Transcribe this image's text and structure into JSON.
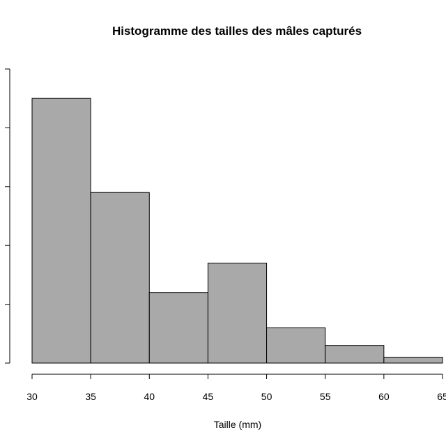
{
  "chart_data": {
    "type": "bar",
    "title": "Histogramme des tailles des mâles capturés",
    "xlabel": "Taille (mm)",
    "ylabel": "",
    "bins": [
      {
        "from": 30,
        "to": 35,
        "value": 45
      },
      {
        "from": 35,
        "to": 40,
        "value": 29
      },
      {
        "from": 40,
        "to": 45,
        "value": 12
      },
      {
        "from": 45,
        "to": 50,
        "value": 17
      },
      {
        "from": 50,
        "to": 55,
        "value": 6
      },
      {
        "from": 55,
        "to": 60,
        "value": 3
      },
      {
        "from": 60,
        "to": 65,
        "value": 1
      }
    ],
    "xlim": [
      30,
      65
    ],
    "ylim": [
      0,
      50
    ],
    "x_ticks": [
      30,
      35,
      40,
      45,
      50,
      55,
      60,
      65
    ],
    "x_tick_labels": [
      "30",
      "35",
      "40",
      "45",
      "50",
      "55",
      "60",
      "65"
    ],
    "y_ticks": [
      0,
      10,
      20,
      30,
      40,
      50
    ],
    "grid": false,
    "bar_color": "#a9a9a9",
    "edge_color": "#000000"
  }
}
